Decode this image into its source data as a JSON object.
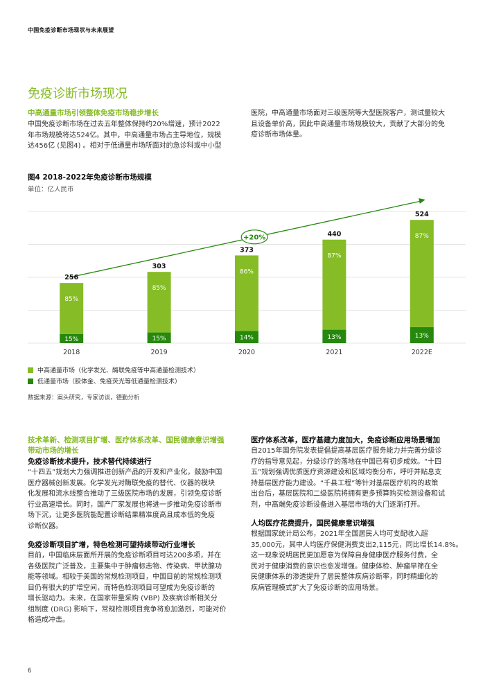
{
  "header": {
    "running_title": "中国免疫诊断市场现状与未来展望"
  },
  "section": {
    "title": "免疫诊断市场现况",
    "intro_heading": "中高通量市场引领整体免疫市场稳步增长",
    "intro_left_lines": [
      "中国免疫诊断市场在过去五年整体保持约20%增速，预计2022",
      "年市场规模将达524亿。其中，中高通量市场占主导地位，规模",
      "达456亿 (见图4) 。相对于低通量市场所面对的急诊科或中小型"
    ],
    "intro_right_lines": [
      "医院，中高通量市场面对三级医院等大型医院客户，测试量较大",
      "且设备单价高，因此中高通量市场规模较大，贡献了大部分的免",
      "疫诊断市场体量。"
    ]
  },
  "figure": {
    "title": "图4 2018-2022年免疫诊断市场规模",
    "unit": "单位：亿人民币",
    "growth_label": "+20%",
    "legend": [
      {
        "label": "中高通量市场（化学发光、酶联免疫等中高通量检测技术）",
        "color": "#86bc25"
      },
      {
        "label": "低通量市场（胶体金、免疫荧光等低通量检测技术）",
        "color": "#26890d"
      }
    ],
    "source": "数据来源：案头研究，专家访谈，德勤分析"
  },
  "chart_data": {
    "type": "bar",
    "stacked": true,
    "categories": [
      "2018",
      "2019",
      "2020",
      "2021",
      "2022E"
    ],
    "totals": [
      256,
      303,
      373,
      440,
      524
    ],
    "total_labels": [
      "256",
      "303",
      "373",
      "440",
      "524"
    ],
    "series": [
      {
        "name": "中高通量市场（化学发光、酶联免疫等中高通量检测技术）",
        "share": [
          0.85,
          0.85,
          0.86,
          0.87,
          0.87
        ],
        "labels": [
          "85%",
          "85%",
          "86%",
          "87%",
          "87%"
        ],
        "color": "#86bc25"
      },
      {
        "name": "低通量市场（胶体金、免疫荧光等低通量检测技术）",
        "share": [
          0.15,
          0.15,
          0.14,
          0.13,
          0.13
        ],
        "labels": [
          "15%",
          "15%",
          "14%",
          "13%",
          "13%"
        ],
        "color": "#26890d"
      }
    ],
    "ylim": [
      0,
      560
    ],
    "grid": true,
    "legend_position": "bottom-left",
    "annotation": "+20%"
  },
  "left_col": {
    "heading_lines": [
      "技术革新、检测项目扩增、医疗体系改革、国民健康意识增强",
      "带动市场的增长"
    ],
    "sub1": "免疫诊断技术提升，技术替代持续进行",
    "para1_lines": [
      "“十四五”规划大力强调推进创新产品的开发和产业化，鼓励中国",
      "医疗器械创新发展。化学发光对酶联免疫的替代、仪器的模块",
      "化发展和流水线整合推动了三级医院市场的发展，引领免疫诊断",
      "行业高速增长。同时，国产厂家发展也将进一步推动免疫诊断市",
      "场下沉，让更多医院能配置诊断结果精准度高且成本低的免疫",
      "诊断仪器。"
    ],
    "sub2": "免疫诊断项目扩增，特色检测可望持续带动行业增长",
    "para2_lines": [
      "目前，中国临床层面所开展的免疫诊断项目可达200多项，并在",
      "各级医院广泛普及，主要集中于肿瘤标志物、传染病、甲状腺功",
      "能等领域。相较于美国的常规检测项目，中国目前的常规检测项",
      "目仍有很大的扩增空间，而特色检测项目可望成为免疫诊断的",
      "增长驱动力。未来，在国家带量采购 (VBP) 及疾病诊断相关分",
      "组制度 (DRG) 影响下，常规检测项目竞争将愈加激烈，可能对价",
      "格造成冲击。"
    ]
  },
  "right_col": {
    "sub1": "医疗体系改革，医疗基建力度加大，免疫诊断应用场景增加",
    "para1_lines": [
      "自2015年国务院发表提倡提高基层医疗服务能力并完善分级诊",
      "疗的指导意见起，分级诊疗的落地在中国已有初步成效。“十四",
      "五”规划强调优质医疗资源建设和区域均衡分布，呼吁并贴息支",
      "持基层医疗能力建设。“千县工程”等针对基层医疗机构的政策",
      "出台后，基层医院和二级医院将拥有更多预算购买检测设备和试",
      "剂，中高端免疫诊断设备进入基层市场的大门逐渐打开。"
    ],
    "sub2": "人均医疗花费提升，国民健康意识增强",
    "para2_lines": [
      "根据国家统计局公布，2021年全国居民人均可支配收入超",
      "35,000元，其中人均医疗保健消费支出2,115元，同比增长14.8%。",
      "这一现象说明居民更加愿意为保障自身健康医疗服务付费，全",
      "民对于健康消费的意识也愈发增强。健康体检、肿瘤早筛在全",
      "民健康体系的渗透提升了居民整体疾病诊断率，同时精细化的",
      "疾病管理模式扩大了免疫诊断的应用场景。"
    ]
  },
  "footer": {
    "page_number": "6"
  }
}
